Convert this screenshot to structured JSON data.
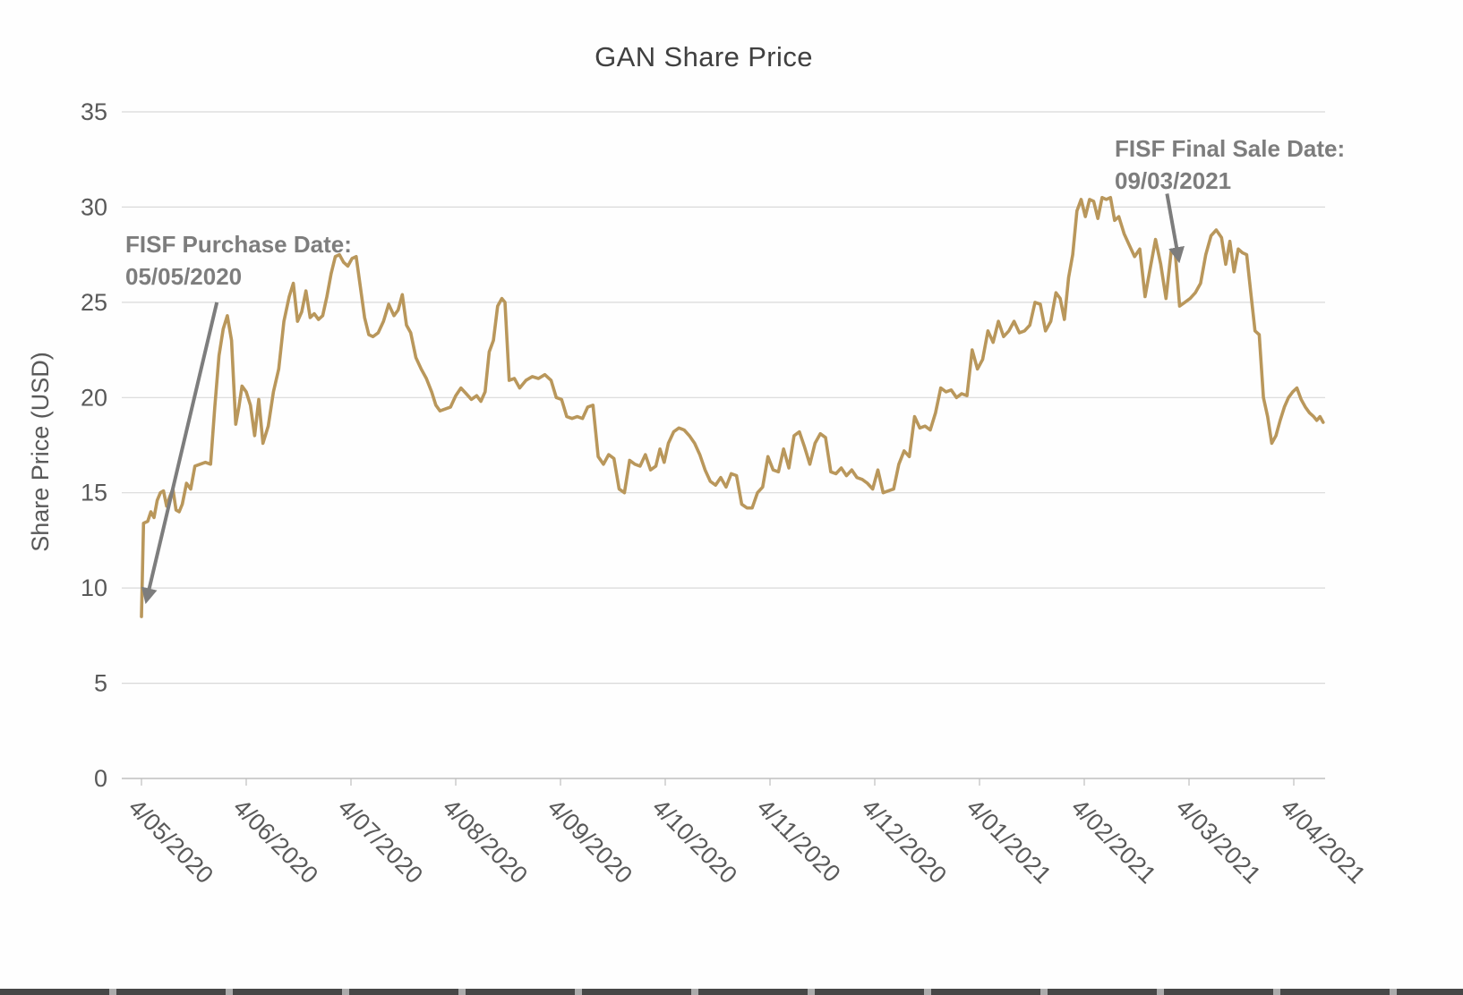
{
  "chart_data": {
    "type": "line",
    "title": "GAN Share Price",
    "ylabel": "Share Price (USD)",
    "xlabel": "",
    "ylim": [
      0,
      35
    ],
    "yticks": [
      0,
      5,
      10,
      15,
      20,
      25,
      30,
      35
    ],
    "x_tick_labels": [
      "4/05/2020",
      "4/06/2020",
      "4/07/2020",
      "4/08/2020",
      "4/09/2020",
      "4/10/2020",
      "4/11/2020",
      "4/12/2020",
      "4/01/2021",
      "4/02/2021",
      "4/03/2021",
      "4/04/2021"
    ],
    "grid": true,
    "legend_position": "none",
    "line_color": "#B9975B",
    "grid_color": "#D9D9D9",
    "axis_color": "#BFBFBF",
    "text_color": "#595959",
    "annotation_color": "#7D7D7D",
    "series": [
      {
        "name": "GAN share price (USD)",
        "x_unit": "months from 4/05/2020",
        "points": [
          [
            0,
            8.5
          ],
          [
            0.02,
            13.4
          ],
          [
            0.06,
            13.5
          ],
          [
            0.09,
            14
          ],
          [
            0.12,
            13.7
          ],
          [
            0.15,
            14.6
          ],
          [
            0.18,
            15
          ],
          [
            0.21,
            15.1
          ],
          [
            0.24,
            14.3
          ],
          [
            0.27,
            14.8
          ],
          [
            0.3,
            15.2
          ],
          [
            0.33,
            14.1
          ],
          [
            0.36,
            14
          ],
          [
            0.39,
            14.4
          ],
          [
            0.43,
            15.5
          ],
          [
            0.47,
            15.2
          ],
          [
            0.51,
            16.4
          ],
          [
            0.56,
            16.5
          ],
          [
            0.61,
            16.6
          ],
          [
            0.66,
            16.5
          ],
          [
            0.7,
            19.5
          ],
          [
            0.74,
            22.2
          ],
          [
            0.78,
            23.6
          ],
          [
            0.82,
            24.3
          ],
          [
            0.86,
            23
          ],
          [
            0.9,
            18.6
          ],
          [
            0.93,
            19.5
          ],
          [
            0.96,
            20.6
          ],
          [
            1,
            20.3
          ],
          [
            1.04,
            19.6
          ],
          [
            1.08,
            18
          ],
          [
            1.12,
            19.9
          ],
          [
            1.16,
            17.6
          ],
          [
            1.21,
            18.5
          ],
          [
            1.26,
            20.3
          ],
          [
            1.31,
            21.5
          ],
          [
            1.36,
            24
          ],
          [
            1.41,
            25.3
          ],
          [
            1.45,
            26
          ],
          [
            1.49,
            24
          ],
          [
            1.53,
            24.5
          ],
          [
            1.57,
            25.6
          ],
          [
            1.61,
            24.2
          ],
          [
            1.65,
            24.4
          ],
          [
            1.69,
            24.1
          ],
          [
            1.73,
            24.3
          ],
          [
            1.77,
            25.3
          ],
          [
            1.81,
            26.5
          ],
          [
            1.85,
            27.4
          ],
          [
            1.89,
            27.5
          ],
          [
            1.93,
            27.1
          ],
          [
            1.97,
            26.9
          ],
          [
            2.01,
            27.3
          ],
          [
            2.05,
            27.4
          ],
          [
            2.09,
            25.8
          ],
          [
            2.13,
            24.2
          ],
          [
            2.17,
            23.3
          ],
          [
            2.21,
            23.2
          ],
          [
            2.26,
            23.4
          ],
          [
            2.31,
            24
          ],
          [
            2.36,
            24.9
          ],
          [
            2.41,
            24.3
          ],
          [
            2.45,
            24.6
          ],
          [
            2.49,
            25.4
          ],
          [
            2.53,
            23.8
          ],
          [
            2.57,
            23.4
          ],
          [
            2.62,
            22.1
          ],
          [
            2.67,
            21.5
          ],
          [
            2.72,
            21
          ],
          [
            2.77,
            20.3
          ],
          [
            2.81,
            19.6
          ],
          [
            2.85,
            19.3
          ],
          [
            2.9,
            19.4
          ],
          [
            2.95,
            19.5
          ],
          [
            3,
            20.1
          ],
          [
            3.05,
            20.5
          ],
          [
            3.1,
            20.2
          ],
          [
            3.15,
            19.9
          ],
          [
            3.2,
            20.1
          ],
          [
            3.24,
            19.8
          ],
          [
            3.28,
            20.3
          ],
          [
            3.32,
            22.4
          ],
          [
            3.36,
            23
          ],
          [
            3.4,
            24.8
          ],
          [
            3.44,
            25.2
          ],
          [
            3.47,
            25
          ],
          [
            3.51,
            20.9
          ],
          [
            3.56,
            21
          ],
          [
            3.61,
            20.5
          ],
          [
            3.67,
            20.9
          ],
          [
            3.73,
            21.1
          ],
          [
            3.79,
            21
          ],
          [
            3.85,
            21.2
          ],
          [
            3.91,
            20.9
          ],
          [
            3.96,
            20
          ],
          [
            4.01,
            19.9
          ],
          [
            4.06,
            19
          ],
          [
            4.11,
            18.9
          ],
          [
            4.16,
            19
          ],
          [
            4.21,
            18.9
          ],
          [
            4.26,
            19.5
          ],
          [
            4.31,
            19.6
          ],
          [
            4.36,
            16.9
          ],
          [
            4.41,
            16.5
          ],
          [
            4.46,
            17
          ],
          [
            4.51,
            16.8
          ],
          [
            4.56,
            15.2
          ],
          [
            4.61,
            15
          ],
          [
            4.66,
            16.7
          ],
          [
            4.71,
            16.5
          ],
          [
            4.76,
            16.4
          ],
          [
            4.81,
            17
          ],
          [
            4.86,
            16.2
          ],
          [
            4.91,
            16.4
          ],
          [
            4.95,
            17.3
          ],
          [
            4.99,
            16.6
          ],
          [
            5.03,
            17.6
          ],
          [
            5.08,
            18.2
          ],
          [
            5.13,
            18.4
          ],
          [
            5.18,
            18.3
          ],
          [
            5.23,
            18
          ],
          [
            5.28,
            17.6
          ],
          [
            5.33,
            17
          ],
          [
            5.38,
            16.2
          ],
          [
            5.43,
            15.6
          ],
          [
            5.48,
            15.4
          ],
          [
            5.53,
            15.8
          ],
          [
            5.58,
            15.3
          ],
          [
            5.63,
            16
          ],
          [
            5.68,
            15.9
          ],
          [
            5.73,
            14.4
          ],
          [
            5.78,
            14.2
          ],
          [
            5.83,
            14.2
          ],
          [
            5.88,
            15
          ],
          [
            5.93,
            15.3
          ],
          [
            5.98,
            16.9
          ],
          [
            6.03,
            16.2
          ],
          [
            6.08,
            16.1
          ],
          [
            6.13,
            17.3
          ],
          [
            6.18,
            16.3
          ],
          [
            6.23,
            18
          ],
          [
            6.28,
            18.2
          ],
          [
            6.33,
            17.4
          ],
          [
            6.38,
            16.5
          ],
          [
            6.43,
            17.6
          ],
          [
            6.48,
            18.1
          ],
          [
            6.53,
            17.9
          ],
          [
            6.58,
            16.1
          ],
          [
            6.63,
            16
          ],
          [
            6.68,
            16.3
          ],
          [
            6.73,
            15.9
          ],
          [
            6.78,
            16.2
          ],
          [
            6.83,
            15.8
          ],
          [
            6.88,
            15.7
          ],
          [
            6.93,
            15.5
          ],
          [
            6.98,
            15.2
          ],
          [
            7.03,
            16.2
          ],
          [
            7.08,
            15
          ],
          [
            7.13,
            15.1
          ],
          [
            7.18,
            15.2
          ],
          [
            7.23,
            16.5
          ],
          [
            7.28,
            17.2
          ],
          [
            7.33,
            16.9
          ],
          [
            7.38,
            19
          ],
          [
            7.43,
            18.4
          ],
          [
            7.48,
            18.5
          ],
          [
            7.53,
            18.3
          ],
          [
            7.58,
            19.2
          ],
          [
            7.63,
            20.5
          ],
          [
            7.68,
            20.3
          ],
          [
            7.73,
            20.4
          ],
          [
            7.78,
            20
          ],
          [
            7.83,
            20.2
          ],
          [
            7.88,
            20.1
          ],
          [
            7.93,
            22.5
          ],
          [
            7.98,
            21.5
          ],
          [
            8.03,
            22
          ],
          [
            8.08,
            23.5
          ],
          [
            8.13,
            22.9
          ],
          [
            8.18,
            24
          ],
          [
            8.23,
            23.2
          ],
          [
            8.28,
            23.5
          ],
          [
            8.33,
            24
          ],
          [
            8.38,
            23.4
          ],
          [
            8.43,
            23.5
          ],
          [
            8.48,
            23.8
          ],
          [
            8.53,
            25
          ],
          [
            8.58,
            24.9
          ],
          [
            8.63,
            23.5
          ],
          [
            8.68,
            24
          ],
          [
            8.73,
            25.5
          ],
          [
            8.77,
            25.2
          ],
          [
            8.81,
            24.1
          ],
          [
            8.85,
            26.3
          ],
          [
            8.89,
            27.5
          ],
          [
            8.93,
            29.8
          ],
          [
            8.97,
            30.4
          ],
          [
            9.01,
            29.5
          ],
          [
            9.05,
            30.4
          ],
          [
            9.09,
            30.3
          ],
          [
            9.13,
            29.4
          ],
          [
            9.17,
            30.5
          ],
          [
            9.21,
            30.4
          ],
          [
            9.25,
            30.5
          ],
          [
            9.29,
            29.3
          ],
          [
            9.33,
            29.5
          ],
          [
            9.38,
            28.6
          ],
          [
            9.43,
            28
          ],
          [
            9.48,
            27.4
          ],
          [
            9.53,
            27.8
          ],
          [
            9.58,
            25.3
          ],
          [
            9.63,
            26.8
          ],
          [
            9.68,
            28.3
          ],
          [
            9.73,
            27
          ],
          [
            9.78,
            25.2
          ],
          [
            9.83,
            27.7
          ],
          [
            9.87,
            27.5
          ],
          [
            9.91,
            24.8
          ],
          [
            9.96,
            25
          ],
          [
            10.01,
            25.2
          ],
          [
            10.06,
            25.5
          ],
          [
            10.11,
            26
          ],
          [
            10.16,
            27.5
          ],
          [
            10.21,
            28.5
          ],
          [
            10.26,
            28.8
          ],
          [
            10.31,
            28.4
          ],
          [
            10.35,
            27
          ],
          [
            10.39,
            28.2
          ],
          [
            10.43,
            26.6
          ],
          [
            10.47,
            27.8
          ],
          [
            10.51,
            27.6
          ],
          [
            10.55,
            27.5
          ],
          [
            10.59,
            25.5
          ],
          [
            10.63,
            23.5
          ],
          [
            10.67,
            23.3
          ],
          [
            10.71,
            20
          ],
          [
            10.75,
            19
          ],
          [
            10.79,
            17.6
          ],
          [
            10.83,
            18
          ],
          [
            10.87,
            18.8
          ],
          [
            10.91,
            19.5
          ],
          [
            10.95,
            20
          ],
          [
            10.99,
            20.3
          ],
          [
            11.03,
            20.5
          ],
          [
            11.07,
            19.9
          ],
          [
            11.11,
            19.5
          ],
          [
            11.15,
            19.2
          ],
          [
            11.19,
            19
          ],
          [
            11.22,
            18.8
          ],
          [
            11.25,
            19
          ],
          [
            11.28,
            18.7
          ]
        ]
      }
    ],
    "annotations": [
      {
        "id": "purchase",
        "lines": [
          "FISF Purchase Date:",
          "05/05/2020"
        ],
        "arrow": {
          "from_month": 0.72,
          "from_value": 25.0,
          "to_month": 0.05,
          "to_value": 9.4
        }
      },
      {
        "id": "sale",
        "lines": [
          "FISF Final Sale Date:",
          "09/03/2021"
        ],
        "arrow": {
          "from_month": 9.79,
          "from_value": 30.7,
          "to_month": 9.9,
          "to_value": 27.3
        }
      }
    ]
  }
}
